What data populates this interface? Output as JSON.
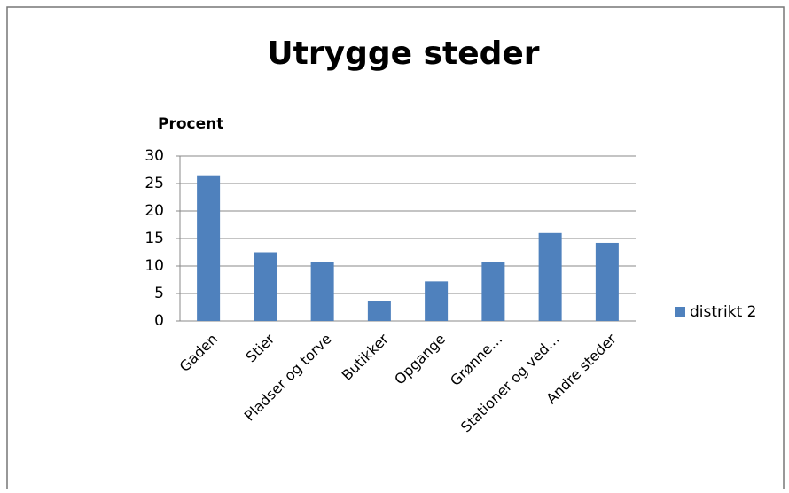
{
  "chart_data": {
    "type": "bar",
    "title": "Utrygge steder",
    "y_label": "Procent",
    "categories": [
      "Gaden",
      "Stier",
      "Pladser og torve",
      "Butikker",
      "Opgange",
      "Grønne…",
      "Stationer og ved…",
      "Andre steder"
    ],
    "series": [
      {
        "name": "distrikt 2",
        "color": "#4f81bd",
        "values": [
          26.5,
          12.5,
          10.7,
          3.6,
          7.2,
          10.7,
          16,
          14.2
        ]
      }
    ],
    "ylim": [
      0,
      30
    ],
    "yticks": [
      0,
      5,
      10,
      15,
      20,
      25,
      30
    ],
    "grid": true,
    "legend": "right"
  }
}
